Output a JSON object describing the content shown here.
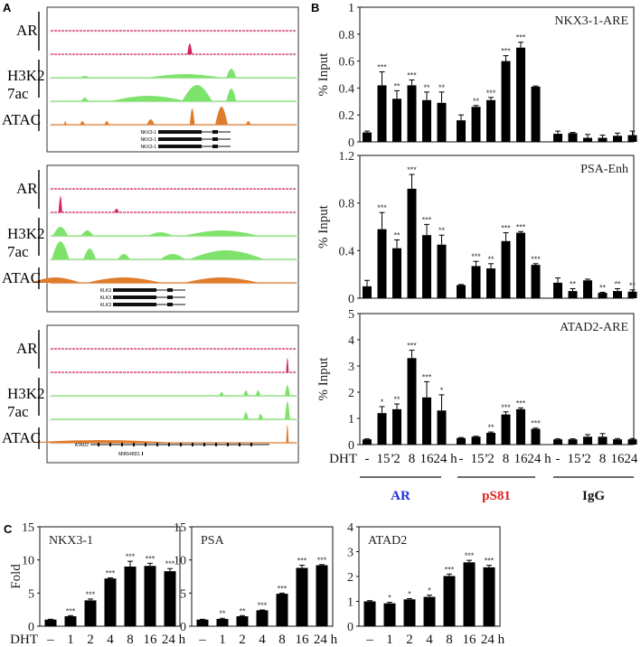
{
  "panels": {
    "a": "A",
    "b": "B",
    "c": "C"
  },
  "panel_a": {
    "track_labels": {
      "ar": "AR",
      "h3k27ac_line1": "H3K2",
      "h3k27ac_line2": "7ac",
      "atac": "ATAC"
    },
    "loci": [
      {
        "genes": [
          "NKX3-1",
          "NKX3-1",
          "NKX3-1"
        ]
      },
      {
        "genes": [
          "KLK3",
          "KLK3",
          "KLK3"
        ]
      },
      {
        "genes": [
          "ATAD2",
          "MIR548D1"
        ]
      }
    ],
    "colors": {
      "ar": "#d6245e",
      "h3k27ac": "#7ee36b",
      "atac": "#e07b2a"
    }
  },
  "panel_b": {
    "x_prefix": "DHT",
    "group_labels": [
      {
        "label": "AR",
        "color": "#1f2fe0"
      },
      {
        "label": "pS81",
        "color": "#e01f1f"
      },
      {
        "label": "IgG",
        "color": "#111111"
      }
    ]
  },
  "panel_c": {
    "x_prefix": "DHT"
  },
  "chart_data": [
    {
      "type": "bar",
      "title": "NKX3-1-ARE",
      "ylabel": "% Input",
      "xlabel": "DHT",
      "ylim": [
        0,
        1
      ],
      "yticks": [
        "0",
        "0.2",
        "0.4",
        "0.6",
        "0.8",
        "1"
      ],
      "categories": [
        "-",
        "15’",
        "2",
        "8",
        "16",
        "24 h"
      ],
      "series": [
        {
          "name": "AR",
          "values": [
            0.07,
            0.42,
            0.32,
            0.42,
            0.31,
            0.29
          ],
          "errors": [
            0.01,
            0.1,
            0.06,
            0.04,
            0.06,
            0.08
          ],
          "sig": [
            "",
            "***",
            "**",
            "***",
            "**",
            "**"
          ]
        },
        {
          "name": "pS81",
          "values": [
            0.16,
            0.26,
            0.31,
            0.6,
            0.7,
            0.41
          ],
          "errors": [
            0.04,
            0.01,
            0.02,
            0.04,
            0.04,
            0.005
          ],
          "sig": [
            "",
            "**",
            "***",
            "***",
            "***",
            ""
          ]
        },
        {
          "name": "IgG",
          "values": [
            0.06,
            0.065,
            0.03,
            0.03,
            0.045,
            0.05
          ],
          "errors": [
            0.02,
            0.005,
            0.025,
            0.02,
            0.02,
            0.03
          ],
          "sig": [
            "",
            "",
            "",
            "",
            "",
            ""
          ]
        }
      ]
    },
    {
      "type": "bar",
      "title": "PSA-Enh",
      "ylabel": "% Input",
      "xlabel": "DHT",
      "ylim": [
        0,
        1.2
      ],
      "yticks": [
        "0",
        "0.4",
        "0.8",
        "1.2"
      ],
      "categories": [
        "-",
        "15’",
        "2",
        "8",
        "16",
        "24 h"
      ],
      "series": [
        {
          "name": "AR",
          "values": [
            0.1,
            0.58,
            0.42,
            0.92,
            0.53,
            0.45
          ],
          "errors": [
            0.05,
            0.14,
            0.07,
            0.12,
            0.09,
            0.08
          ],
          "sig": [
            "",
            "***",
            "**",
            "***",
            "***",
            "**"
          ]
        },
        {
          "name": "pS81",
          "values": [
            0.11,
            0.27,
            0.25,
            0.48,
            0.55,
            0.28
          ],
          "errors": [
            0.005,
            0.04,
            0.04,
            0.07,
            0.01,
            0.01
          ],
          "sig": [
            "",
            "***",
            "**",
            "***",
            "***",
            "***"
          ]
        },
        {
          "name": "IgG",
          "values": [
            0.13,
            0.06,
            0.15,
            0.045,
            0.06,
            0.055
          ],
          "errors": [
            0.04,
            0.02,
            0.01,
            0.005,
            0.02,
            0.015
          ],
          "sig": [
            "",
            "**",
            "",
            "**",
            "**",
            "**"
          ]
        }
      ]
    },
    {
      "type": "bar",
      "title": "ATAD2-ARE",
      "ylabel": "% Input",
      "xlabel": "DHT",
      "ylim": [
        0,
        5
      ],
      "yticks": [
        "0",
        "1",
        "2",
        "3",
        "4",
        "5"
      ],
      "categories": [
        "-",
        "15’",
        "2",
        "8",
        "16",
        "24 h"
      ],
      "series": [
        {
          "name": "AR",
          "values": [
            0.2,
            1.2,
            1.35,
            3.3,
            1.8,
            1.3
          ],
          "errors": [
            0.02,
            0.25,
            0.2,
            0.3,
            0.6,
            0.6
          ],
          "sig": [
            "",
            "*",
            "**",
            "***",
            "***",
            "*"
          ]
        },
        {
          "name": "pS81",
          "values": [
            0.25,
            0.3,
            0.45,
            1.15,
            1.35,
            0.6
          ],
          "errors": [
            0.02,
            0.02,
            0.03,
            0.1,
            0.05,
            0.03
          ],
          "sig": [
            "",
            "",
            "**",
            "***",
            "***",
            "***"
          ]
        },
        {
          "name": "IgG",
          "values": [
            0.2,
            0.2,
            0.3,
            0.3,
            0.2,
            0.2
          ],
          "errors": [
            0.02,
            0.02,
            0.08,
            0.12,
            0.03,
            0.03
          ],
          "sig": [
            "",
            "",
            "",
            "",
            "",
            ""
          ]
        }
      ]
    },
    {
      "type": "bar",
      "title": "NKX3-1",
      "ylabel": "Fold",
      "xlabel": "DHT",
      "ylim": [
        0,
        15
      ],
      "yticks": [
        "0",
        "5",
        "10",
        "15"
      ],
      "categories": [
        "–",
        "1",
        "2",
        "4",
        "8",
        "16",
        "24 h"
      ],
      "series": [
        {
          "name": "NKX3-1",
          "values": [
            1,
            1.5,
            3.9,
            7.2,
            9.0,
            9.1,
            8.3
          ],
          "errors": [
            0.05,
            0.1,
            0.2,
            0.1,
            0.8,
            0.4,
            0.4
          ],
          "sig": [
            "",
            "***",
            "***",
            "***",
            "***",
            "***",
            "***"
          ]
        }
      ]
    },
    {
      "type": "bar",
      "title": "PSA",
      "ylabel": "",
      "xlabel": "",
      "ylim": [
        0,
        15
      ],
      "yticks": [
        "0",
        "5",
        "10",
        "15"
      ],
      "categories": [
        "–",
        "1",
        "2",
        "4",
        "8",
        "16",
        "24 h"
      ],
      "series": [
        {
          "name": "PSA",
          "values": [
            1,
            1.1,
            1.5,
            2.4,
            4.9,
            8.8,
            9.2
          ],
          "errors": [
            0.05,
            0.1,
            0.1,
            0.05,
            0.1,
            0.4,
            0.1
          ],
          "sig": [
            "",
            "**",
            "**",
            "***",
            "***",
            "***",
            "***"
          ]
        }
      ]
    },
    {
      "type": "bar",
      "title": "ATAD2",
      "ylabel": "",
      "xlabel": "",
      "ylim": [
        0,
        4
      ],
      "yticks": [
        "0",
        "1",
        "2",
        "3",
        "4"
      ],
      "categories": [
        "–",
        "1",
        "2",
        "4",
        "8",
        "16",
        "24 h"
      ],
      "series": [
        {
          "name": "ATAD2",
          "values": [
            1,
            0.92,
            1.08,
            1.18,
            2.02,
            2.57,
            2.37
          ],
          "errors": [
            0.03,
            0.04,
            0.03,
            0.07,
            0.08,
            0.08,
            0.08
          ],
          "sig": [
            "",
            "*",
            "*",
            "*",
            "***",
            "***",
            "***"
          ]
        }
      ]
    }
  ]
}
